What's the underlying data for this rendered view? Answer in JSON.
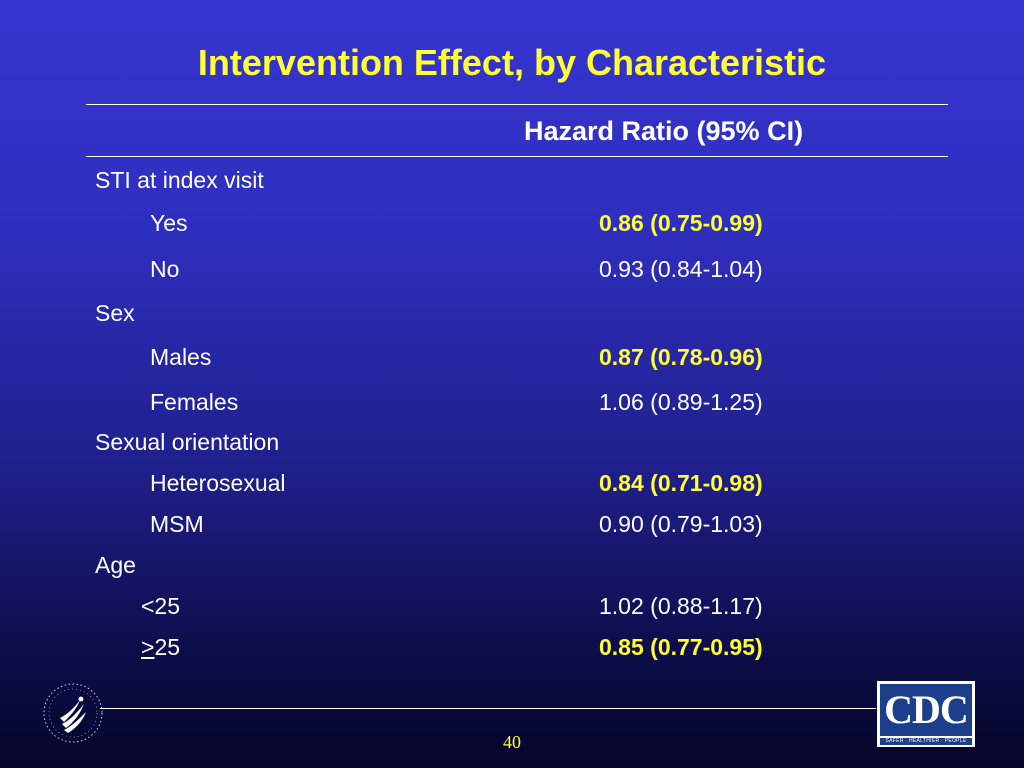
{
  "slide": {
    "title": "Intervention Effect, by Characteristic",
    "column_header": "Hazard Ratio (95% CI)",
    "page_number": "40"
  },
  "groups": [
    {
      "label": "STI at index visit",
      "rows": [
        {
          "label": "Yes",
          "value": "0.86 (0.75-0.99)",
          "highlight": true
        },
        {
          "label": "No",
          "value": "0.93 (0.84-1.04)",
          "highlight": false
        }
      ]
    },
    {
      "label": "Sex",
      "rows": [
        {
          "label": "Males",
          "value": "0.87 (0.78-0.96)",
          "highlight": true
        },
        {
          "label": "Females",
          "value": "1.06 (0.89-1.25)",
          "highlight": false
        }
      ]
    },
    {
      "label": "Sexual orientation",
      "rows": [
        {
          "label": "Heterosexual",
          "value": "0.84 (0.71-0.98)",
          "highlight": true
        },
        {
          "label": "MSM",
          "value": "0.90 (0.79-1.03)",
          "highlight": false
        }
      ]
    },
    {
      "label": "Age",
      "rows": [
        {
          "label": "<25",
          "value": "1.02 (0.88-1.17)",
          "highlight": false
        },
        {
          "label_symbol": ">",
          "label_rest": "25",
          "value": "0.85 (0.77-0.95)",
          "highlight": true
        }
      ]
    }
  ],
  "logos": {
    "cdc_text": "CDC",
    "cdc_tagline": "SAFER · HEALTHIER · PEOPLE",
    "hhs": "hhs-eagle-seal-icon"
  },
  "colors": {
    "title": "#ffff33",
    "highlight": "#ffff33",
    "text": "#ffffff",
    "cdc_blue": "#1b3f8b"
  }
}
